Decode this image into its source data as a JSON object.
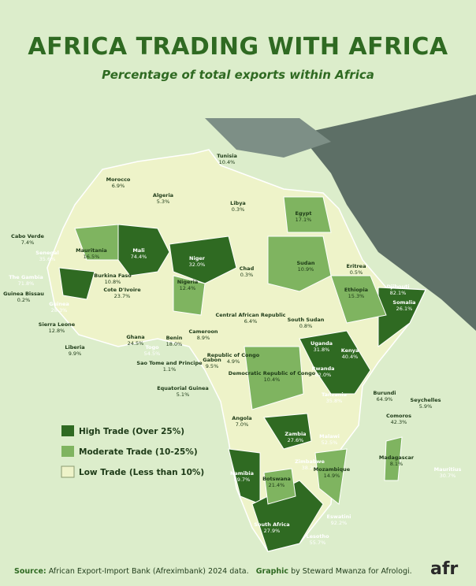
{
  "header": {
    "title": "AFRICA TRADING WITH AFRICA",
    "subtitle": "Percentage of total exports within Africa"
  },
  "countries": [
    {
      "name": "Tunisia",
      "value": "10.4%"
    },
    {
      "name": "Morocco",
      "value": "6.9%"
    },
    {
      "name": "Algeria",
      "value": "5.3%"
    },
    {
      "name": "Libya",
      "value": "0.3%"
    },
    {
      "name": "Egypt",
      "value": "17.1%"
    },
    {
      "name": "Mauritania",
      "value": "16.5%"
    },
    {
      "name": "Mali",
      "value": "74.4%"
    },
    {
      "name": "Niger",
      "value": "32.0%"
    },
    {
      "name": "Chad",
      "value": "0.3%"
    },
    {
      "name": "Sudan",
      "value": "10.9%"
    },
    {
      "name": "Eritrea",
      "value": "0.5%"
    },
    {
      "name": "Djibouti",
      "value": "82.1%"
    },
    {
      "name": "Somalia",
      "value": "26.1%"
    },
    {
      "name": "Ethiopia",
      "value": "15.3%"
    },
    {
      "name": "South Sudan",
      "value": "0.8%"
    },
    {
      "name": "Central African Republic",
      "value": "6.4%"
    },
    {
      "name": "Cabo Verde",
      "value": "7.4%"
    },
    {
      "name": "Senegal",
      "value": "35.6%"
    },
    {
      "name": "The Gambia",
      "value": "71.8%"
    },
    {
      "name": "Guinea Bissau",
      "value": "0.2%"
    },
    {
      "name": "Guinea",
      "value": "28.3%"
    },
    {
      "name": "Sierra Leone",
      "value": "12.8%"
    },
    {
      "name": "Liberia",
      "value": "9.9%"
    },
    {
      "name": "Burkina Faso",
      "value": "10.8%"
    },
    {
      "name": "Cote D'Ivoire",
      "value": "23.7%"
    },
    {
      "name": "Ghana",
      "value": "24.5%"
    },
    {
      "name": "Togo",
      "value": "54.5%"
    },
    {
      "name": "Benin",
      "value": "18.0%"
    },
    {
      "name": "Nigeria",
      "value": "12.4%"
    },
    {
      "name": "Cameroon",
      "value": "8.9%"
    },
    {
      "name": "Sao Tome and Principe",
      "value": "1.1%"
    },
    {
      "name": "Gabon",
      "value": "9.5%"
    },
    {
      "name": "Republic of Congo",
      "value": "4.9%"
    },
    {
      "name": "Equatorial Guinea",
      "value": "5.1%"
    },
    {
      "name": "Democratic Republic of Congo",
      "value": "10.4%"
    },
    {
      "name": "Uganda",
      "value": "31.8%"
    },
    {
      "name": "Kenya",
      "value": "40.4%"
    },
    {
      "name": "Rwanda",
      "value": "62.0%"
    },
    {
      "name": "Tanzania",
      "value": "35.8%"
    },
    {
      "name": "Burundi",
      "value": "64.9%"
    },
    {
      "name": "Seychelles",
      "value": "5.9%"
    },
    {
      "name": "Comoros",
      "value": "42.3%"
    },
    {
      "name": "Angola",
      "value": "7.0%"
    },
    {
      "name": "Zambia",
      "value": "27.6%"
    },
    {
      "name": "Malawi",
      "value": "52.5%"
    },
    {
      "name": "Madagascar",
      "value": "8.1%"
    },
    {
      "name": "Mauritius",
      "value": "30.7%"
    },
    {
      "name": "Zimbabwe",
      "value": "38.2%"
    },
    {
      "name": "Mozambique",
      "value": "14.9%"
    },
    {
      "name": "Namibia",
      "value": "49.7%"
    },
    {
      "name": "Botswana",
      "value": "21.4%"
    },
    {
      "name": "Eswatini",
      "value": "92.2%"
    },
    {
      "name": "South Africa",
      "value": "27.9%"
    },
    {
      "name": "Lesotho",
      "value": "55.7%"
    }
  ],
  "legend": [
    "High Trade (Over 25%)",
    "Moderate Trade (10-25%)",
    "Low Trade (Less than 10%)"
  ],
  "footer": {
    "source_label": "Source:",
    "source": "African Export-Import Bank (Afreximbank) 2024 data.",
    "graphic_label": "Graphic",
    "graphic": "by Steward Mwanza for Afrologi.",
    "logo": "afr"
  }
}
